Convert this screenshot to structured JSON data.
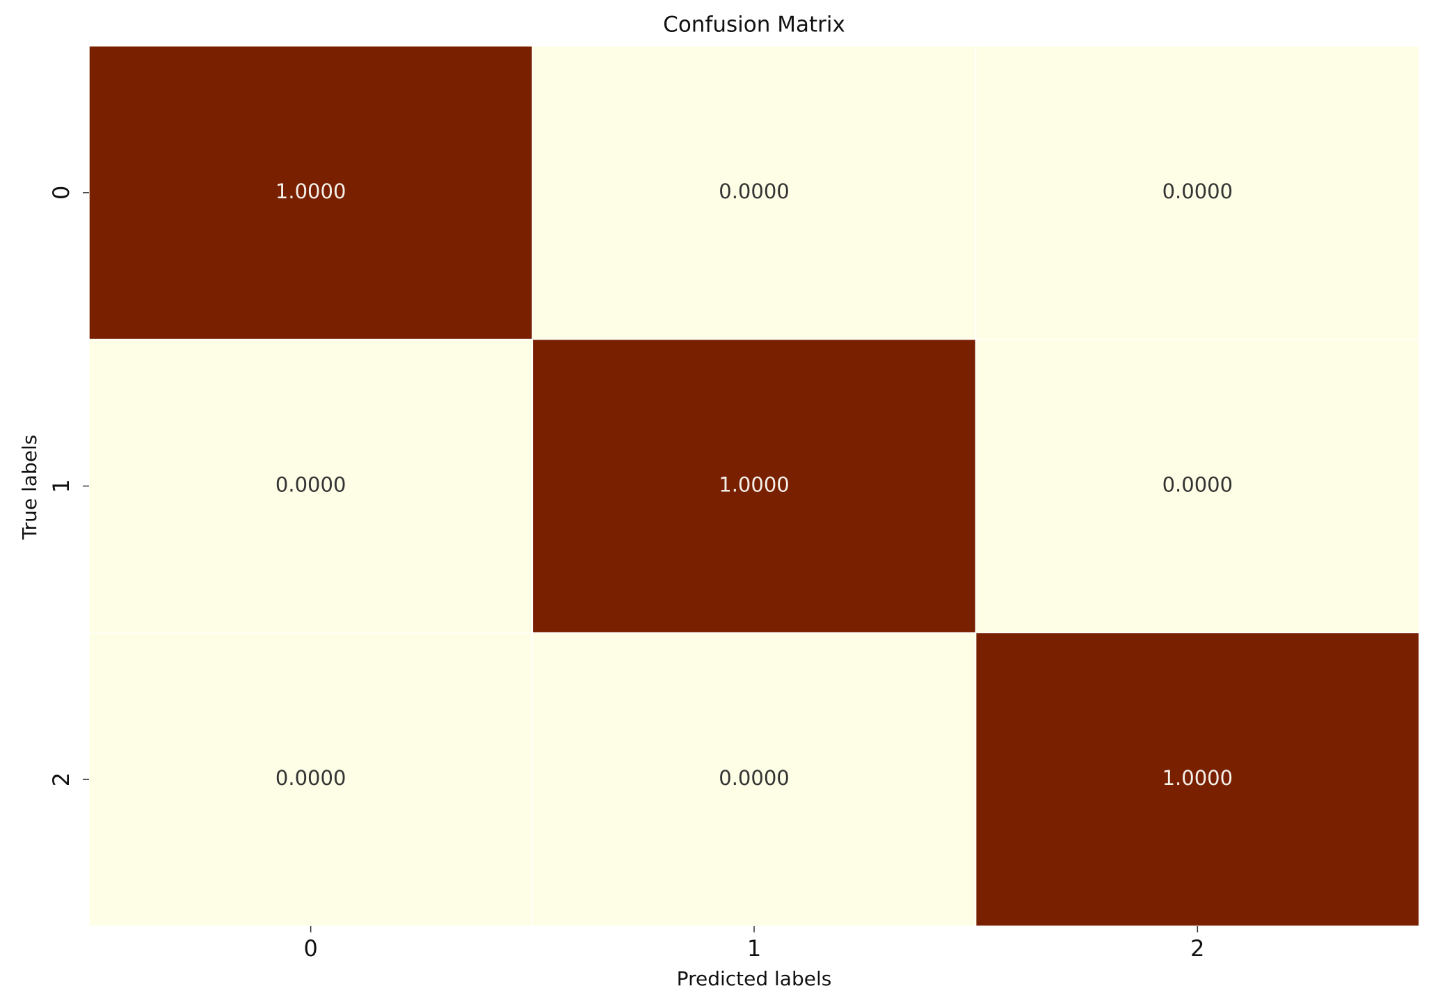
{
  "chart_data": {
    "type": "heatmap",
    "title": "Confusion Matrix",
    "x_label": "Predicted labels",
    "y_label": "True labels",
    "x_categories": [
      "0",
      "1",
      "2"
    ],
    "y_categories": [
      "0",
      "1",
      "2"
    ],
    "values": [
      [
        1,
        0,
        0
      ],
      [
        0,
        1,
        0
      ],
      [
        0,
        0,
        1
      ]
    ],
    "value_labels": [
      [
        "1.0000",
        "0.0000",
        "0.0000"
      ],
      [
        "0.0000",
        "1.0000",
        "0.0000"
      ],
      [
        "0.0000",
        "0.0000",
        "1.0000"
      ]
    ],
    "colormap": [
      "#fefee6",
      "#782000"
    ]
  }
}
